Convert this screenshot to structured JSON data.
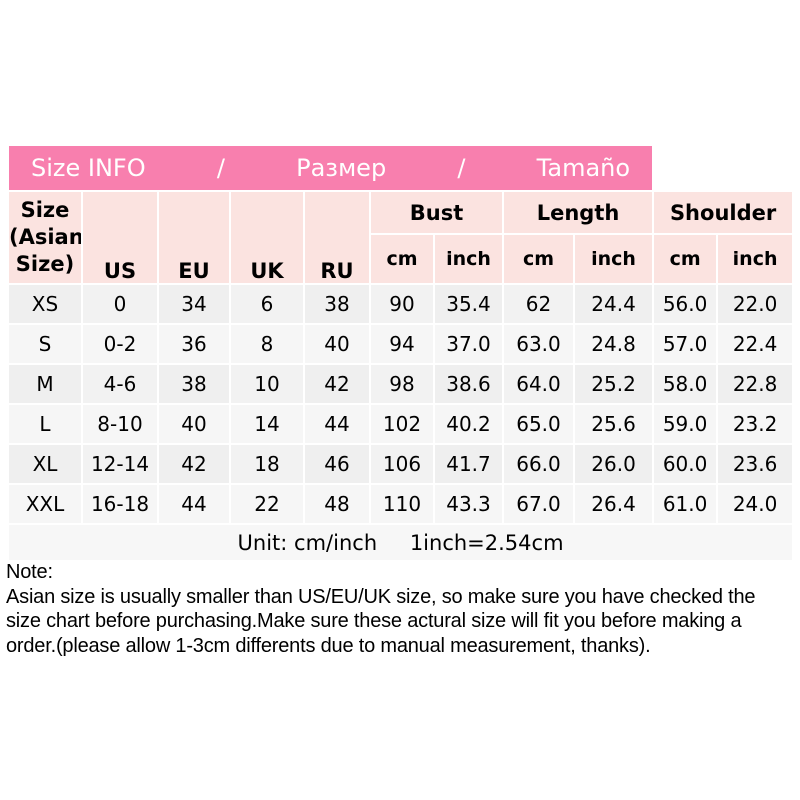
{
  "banner": {
    "title_en": "Size INFO",
    "sep1": "/",
    "title_ru": "Размер",
    "sep2": "/",
    "title_es": "Tamaño"
  },
  "table": {
    "size_label_lines": [
      "Size",
      "(Asian",
      "Size)"
    ],
    "region_headers": [
      "US",
      "EU",
      "UK",
      "RU"
    ],
    "groups": [
      "Bust",
      "Length",
      "Shoulder"
    ],
    "sub_headers": [
      "cm",
      "inch",
      "cm",
      "inch",
      "cm",
      "inch"
    ],
    "rows": [
      [
        "XS",
        "0",
        "34",
        "6",
        "38",
        "90",
        "35.4",
        "62",
        "24.4",
        "56.0",
        "22.0"
      ],
      [
        "S",
        "0-2",
        "36",
        "8",
        "40",
        "94",
        "37.0",
        "63.0",
        "24.8",
        "57.0",
        "22.4"
      ],
      [
        "M",
        "4-6",
        "38",
        "10",
        "42",
        "98",
        "38.6",
        "64.0",
        "25.2",
        "58.0",
        "22.8"
      ],
      [
        "L",
        "8-10",
        "40",
        "14",
        "44",
        "102",
        "40.2",
        "65.0",
        "25.6",
        "59.0",
        "23.2"
      ],
      [
        "XL",
        "12-14",
        "42",
        "18",
        "46",
        "106",
        "41.7",
        "66.0",
        "26.0",
        "60.0",
        "23.6"
      ],
      [
        "XXL",
        "16-18",
        "44",
        "22",
        "48",
        "110",
        "43.3",
        "67.0",
        "26.4",
        "61.0",
        "24.0"
      ]
    ],
    "footer_left": "Unit: cm/inch",
    "footer_right": "1inch=2.54cm"
  },
  "note": {
    "title": "Note:",
    "lines": [
      "Asian size is usually smaller than US/EU/UK size, so make sure you have checked the",
      "size chart before purchasing.Make sure these actural size will fit you before making a",
      "order.(please allow 1-3cm differents due to manual measurement, thanks)."
    ]
  },
  "colors": {
    "banner_pink": "#f87fae",
    "banner_top_edge": "#ee6ba1",
    "header_pale_pink": "#fbe3e0",
    "data_cell_gray": "#f2f2f2",
    "grid_white": "#ffffff",
    "footer_border_gray": "#c9c9c9",
    "text_black": "#000000",
    "banner_text_white": "#ffffff"
  }
}
